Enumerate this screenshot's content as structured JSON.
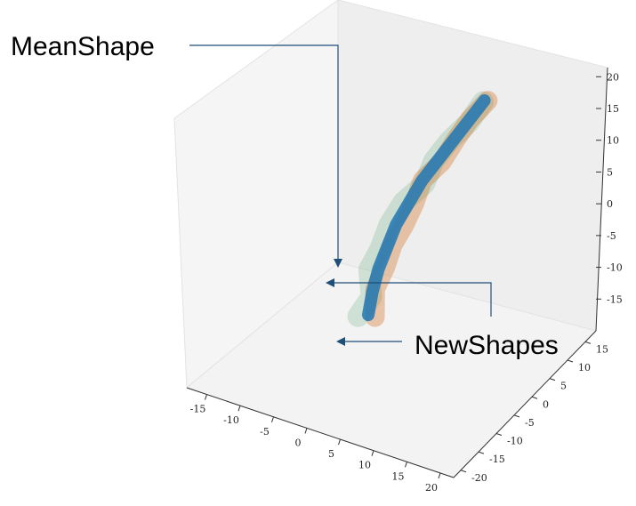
{
  "chart_data": {
    "type": "line",
    "projection": "3d",
    "grid": false,
    "annotations": [
      {
        "text": "MeanShape",
        "points_to": "MeanShape"
      },
      {
        "text": "NewShapes",
        "points_to": "NewShapes"
      }
    ],
    "axes": {
      "x": {
        "ticks": [
          -15,
          -10,
          -5,
          0,
          5,
          10,
          15,
          20
        ],
        "lim": [
          -18,
          22
        ]
      },
      "y": {
        "ticks": [
          -20,
          -15,
          -10,
          -5,
          0,
          5,
          10,
          15
        ],
        "lim": [
          -22,
          18
        ]
      },
      "z": {
        "ticks": [
          -15,
          -10,
          -5,
          0,
          5,
          10,
          15,
          20
        ],
        "lim": [
          -20,
          22
        ]
      }
    },
    "series": [
      {
        "name": "MeanShape",
        "color": "#1f77b4",
        "x": [
          -2,
          -1.6,
          -1,
          0,
          1,
          2.5,
          4,
          6,
          8,
          10,
          12
        ],
        "y": [
          -1,
          -0.6,
          0,
          0.6,
          1.2,
          2,
          2.8,
          3.4,
          4,
          4.6,
          5.4
        ],
        "z": [
          -15,
          -11.5,
          -8,
          -4.5,
          -1,
          2.5,
          6,
          9.5,
          13,
          16.5,
          20
        ]
      },
      {
        "name": "NewShapes",
        "color": "#d2691e",
        "x": [
          -1,
          -1.6,
          -0.4,
          0.4,
          2,
          3.2,
          4,
          6.6,
          8.2,
          10,
          12.4
        ],
        "y": [
          -1,
          0.2,
          0.8,
          1.4,
          1.6,
          2.2,
          3,
          3.6,
          4.4,
          5,
          5.6
        ],
        "z": [
          -15,
          -11.5,
          -8,
          -4.5,
          -1,
          2.5,
          6,
          9.5,
          13,
          16.5,
          20
        ]
      },
      {
        "name": "NewShapes",
        "color": "#5fad78",
        "x": [
          -3,
          -1.2,
          -2,
          -0.6,
          0.2,
          1.8,
          4.6,
          5.6,
          7.6,
          10.2,
          12
        ],
        "y": [
          -2,
          -1.6,
          -0.8,
          -0.2,
          0.8,
          1.8,
          2.4,
          3.2,
          3.8,
          4.4,
          5
        ],
        "z": [
          -15,
          -11.5,
          -8,
          -4.5,
          -1,
          2.5,
          6,
          9.5,
          13,
          16.5,
          20
        ]
      }
    ]
  }
}
